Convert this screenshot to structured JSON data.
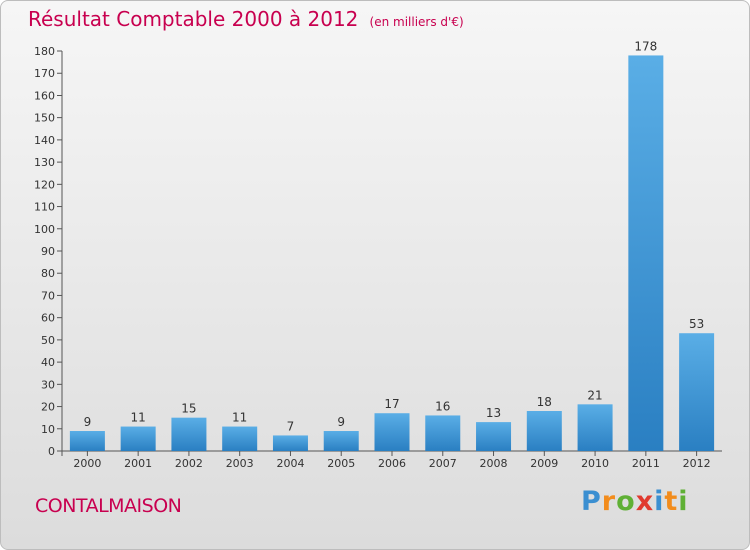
{
  "header": {
    "title": "Résultat Comptable 2000 à 2012",
    "subtitle": "(en milliers d'€)"
  },
  "footer": {
    "commune": "CONTALMAISON",
    "logo_letters": [
      {
        "char": "P",
        "color": "#3b8fd1"
      },
      {
        "char": "r",
        "color": "#f28c1c"
      },
      {
        "char": "o",
        "color": "#5fb035"
      },
      {
        "char": "x",
        "color": "#e03a2f"
      },
      {
        "char": "i",
        "color": "#3b8fd1"
      },
      {
        "char": "t",
        "color": "#f28c1c"
      },
      {
        "char": "i",
        "color": "#5fb035"
      }
    ]
  },
  "chart_data": {
    "type": "bar",
    "categories": [
      "2000",
      "2001",
      "2002",
      "2003",
      "2004",
      "2005",
      "2006",
      "2007",
      "2008",
      "2009",
      "2010",
      "2011",
      "2012"
    ],
    "values": [
      9,
      11,
      15,
      11,
      7,
      9,
      17,
      16,
      13,
      18,
      21,
      178,
      53
    ],
    "data_labels": [
      "9",
      "11",
      "15",
      "11",
      "7",
      "9",
      "17",
      "16",
      "13",
      "18",
      "21",
      "178",
      "53"
    ],
    "ylim": [
      0,
      180
    ],
    "yticks": [
      0,
      10,
      20,
      30,
      40,
      50,
      60,
      70,
      80,
      90,
      100,
      110,
      120,
      130,
      140,
      150,
      160,
      170,
      180
    ],
    "grid": false,
    "legend": "none",
    "colors": {
      "bar_light": "#5aaee6",
      "bar_dark": "#2a7fc2",
      "axis": "#555555"
    }
  }
}
